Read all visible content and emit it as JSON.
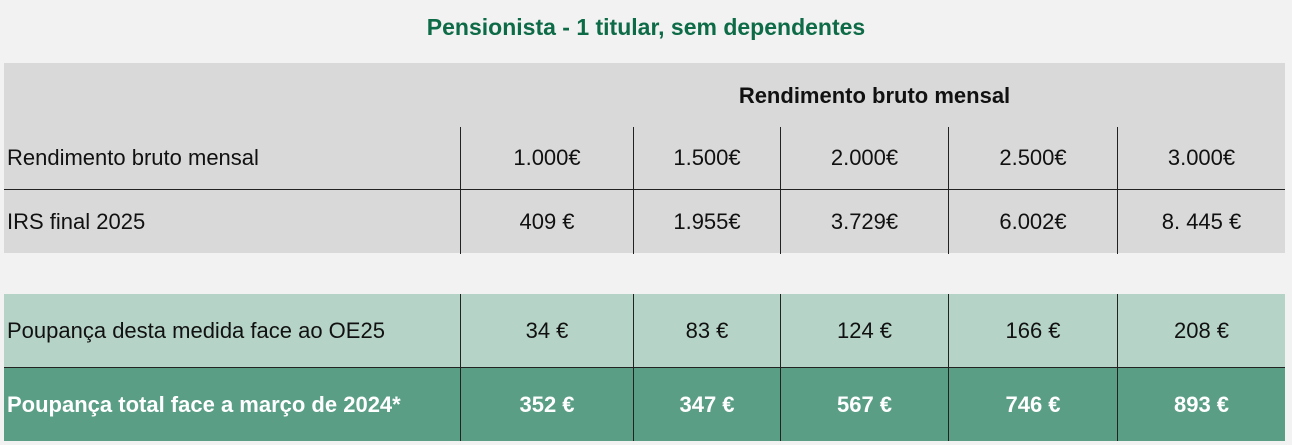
{
  "title": "Pensionista - 1 titular, sem dependentes",
  "header": "Rendimento bruto mensal",
  "rows": [
    {
      "label": "Rendimento bruto mensal",
      "values": [
        "1.000€",
        "1.500€",
        "2.000€",
        "2.500€",
        "3.000€"
      ]
    },
    {
      "label": "IRS final 2025",
      "values": [
        "409 €",
        "1.955€",
        "3.729€",
        "6.002€",
        "8. 445 €"
      ]
    },
    {
      "label": "Poupança desta medida face ao OE25",
      "values": [
        "34 €",
        "83 €",
        "124 €",
        "166 €",
        "208 €"
      ]
    },
    {
      "label": "Poupança total face a março de 2024*",
      "values": [
        "352 €",
        "347 €",
        "567 €",
        "746 €",
        "893 €"
      ]
    }
  ],
  "colors": {
    "title": "#0e6b47",
    "gray": "#d9d9d9",
    "light_green": "#b5d3c7",
    "dark_green": "#5a9e86"
  }
}
